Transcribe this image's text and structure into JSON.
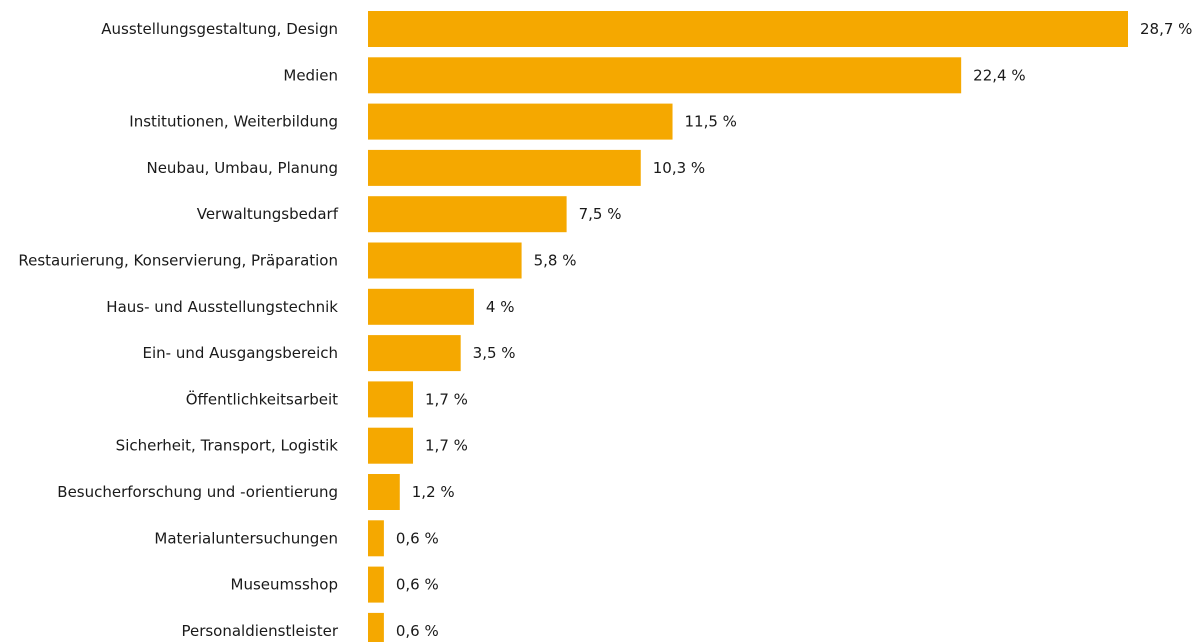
{
  "chart_data": {
    "type": "bar",
    "orientation": "horizontal",
    "bar_color": "#F5A800",
    "categories": [
      "Ausstellungsgestaltung, Design",
      "Medien",
      "Institutionen, Weiterbildung",
      "Neubau, Umbau, Planung",
      "Verwaltungsbedarf",
      "Restaurierung, Konservierung, Präparation",
      "Haus- und Ausstellungstechnik",
      "Ein- und Ausgangsbereich",
      "Öffentlichkeitsarbeit",
      "Sicherheit, Transport, Logistik",
      "Besucherforschung und -orientierung",
      "Materialuntersuchungen",
      "Museumsshop",
      "Personaldienstleister"
    ],
    "values": [
      28.7,
      22.4,
      11.5,
      10.3,
      7.5,
      5.8,
      4,
      3.5,
      1.7,
      1.7,
      1.2,
      0.6,
      0.6,
      0.6
    ],
    "value_labels": [
      "28,7 %",
      "22,4 %",
      "11,5 %",
      "10,3 %",
      "7,5 %",
      "5,8 %",
      "4 %",
      "3,5 %",
      "1,7 %",
      "1,7 %",
      "1,2 %",
      "0,6 %",
      "0,6 %",
      "0,6 %"
    ],
    "xlim": [
      0,
      28.7
    ],
    "grid": false,
    "legend": "none"
  }
}
